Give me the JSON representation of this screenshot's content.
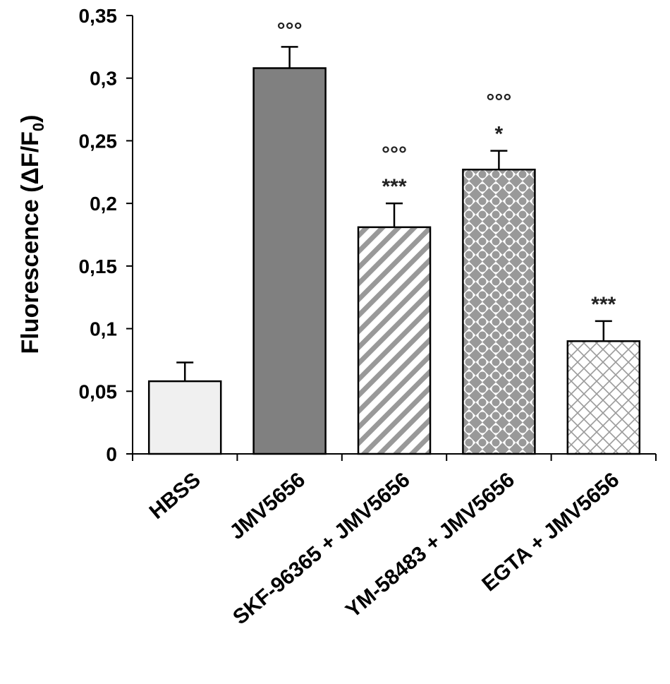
{
  "chart_data": {
    "type": "bar",
    "title": "",
    "xlabel": "",
    "ylabel": "Fluorescence (ΔF/F",
    "ylabel_subscript": "0",
    "ylabel_close": ")",
    "ylim": [
      0,
      0.35
    ],
    "yticks": [
      0,
      0.05,
      0.1,
      0.15,
      0.2,
      0.25,
      0.3,
      0.35
    ],
    "ytick_labels": [
      "0",
      "0,05",
      "0,1",
      "0,15",
      "0,2",
      "0,25",
      "0,3",
      "0,35"
    ],
    "grid": false,
    "categories": [
      "HBSS",
      "JMV5656",
      "SKF-96365 + JMV5656",
      "YM-58483 + JMV5656",
      "EGTA + JMV5656"
    ],
    "values": [
      0.058,
      0.308,
      0.181,
      0.227,
      0.09
    ],
    "errors": [
      0.015,
      0.017,
      0.019,
      0.015,
      0.016
    ],
    "fills": [
      "solid-light",
      "solid-dark",
      "diagonal-stripes",
      "diamond-dots",
      "cross-hatch"
    ],
    "colors": {
      "light": "#f0f0f0",
      "dark": "#808080",
      "pattern": "#999999",
      "outline": "#000000"
    },
    "annotations": [
      {
        "category": "JMV5656",
        "lines": [
          "°°°"
        ]
      },
      {
        "category": "SKF-96365 + JMV5656",
        "lines": [
          "°°°",
          "***"
        ]
      },
      {
        "category": "YM-58483 + JMV5656",
        "lines": [
          "°°°",
          "*"
        ]
      },
      {
        "category": "EGTA + JMV5656",
        "lines": [
          "***"
        ]
      }
    ]
  }
}
